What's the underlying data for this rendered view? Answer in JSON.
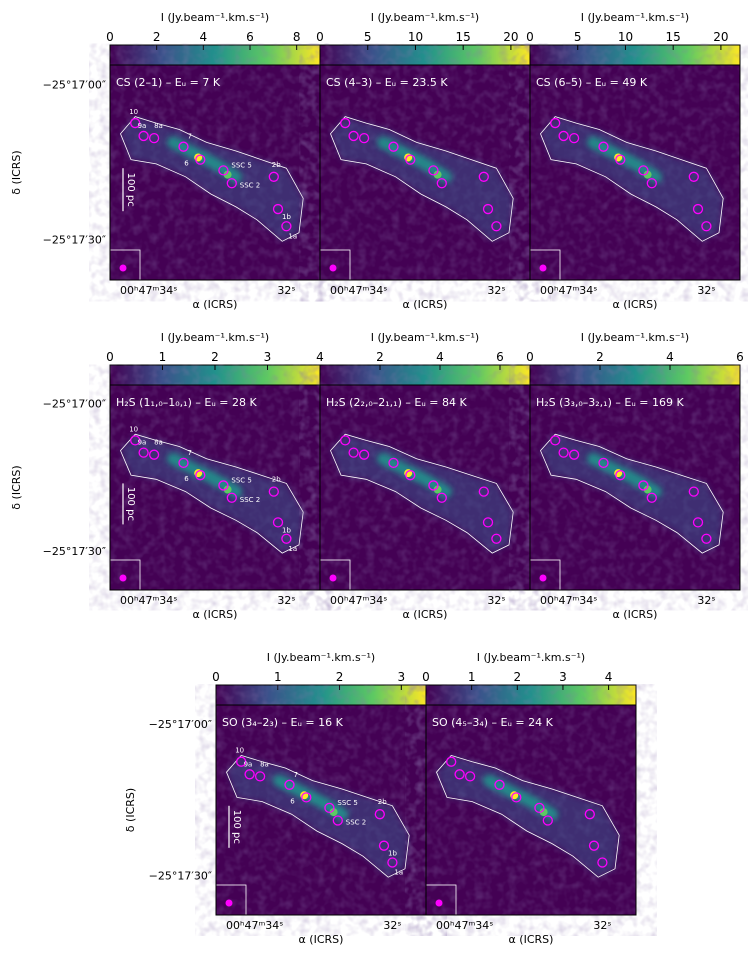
{
  "figure": {
    "colorbar_label": "I (Jy.beam⁻¹.km.s⁻¹)",
    "dec_label": "δ (ICRS)",
    "ra_label": "α (ICRS)",
    "dec_ticks": [
      "−25°17′00″",
      "−25°17′30″"
    ],
    "ra_ticks": [
      "00ʰ47ᵐ34ˢ",
      "32ˢ"
    ],
    "scalebar_label": "100 pc",
    "source_labels": [
      "10",
      "9a",
      "8a",
      "7",
      "6",
      "SSC 5",
      "SSC 2",
      "2b",
      "1b",
      "1a"
    ],
    "colormap": [
      "#440154",
      "#3b528b",
      "#21918c",
      "#5ec962",
      "#fde725"
    ],
    "marker_color": "#ff00ff"
  },
  "chart_data": [
    {
      "type": "heatmap",
      "title": "CS (2–1) – Eᵤ = 7 K",
      "colorbar_ticks": [
        "0",
        "2",
        "4",
        "6",
        "8"
      ],
      "clim": [
        0,
        9
      ],
      "row": 0,
      "col": 0,
      "source_labels_shown": true
    },
    {
      "type": "heatmap",
      "title": "CS (4–3) – Eᵤ = 23.5 K",
      "colorbar_ticks": [
        "0",
        "5",
        "10",
        "15",
        "20"
      ],
      "clim": [
        0,
        22
      ],
      "row": 0,
      "col": 1,
      "source_labels_shown": false
    },
    {
      "type": "heatmap",
      "title": "CS (6–5) – Eᵤ = 49 K",
      "colorbar_ticks": [
        "0",
        "5",
        "10",
        "15",
        "20"
      ],
      "clim": [
        0,
        22
      ],
      "row": 0,
      "col": 2,
      "source_labels_shown": false
    },
    {
      "type": "heatmap",
      "title": "H₂S (1₁,₀–1₀,₁) – Eᵤ = 28 K",
      "colorbar_ticks": [
        "0",
        "1",
        "2",
        "3",
        "4"
      ],
      "clim": [
        0,
        4
      ],
      "row": 1,
      "col": 0,
      "source_labels_shown": true
    },
    {
      "type": "heatmap",
      "title": "H₂S (2₂,₀–2₁,₁) – Eᵤ = 84 K",
      "colorbar_ticks": [
        "2",
        "4",
        "6"
      ],
      "clim": [
        0,
        7
      ],
      "row": 1,
      "col": 1,
      "source_labels_shown": false
    },
    {
      "type": "heatmap",
      "title": "H₂S (3₃,₀–3₂,₁) – Eᵤ = 169 K",
      "colorbar_ticks": [
        "0",
        "2",
        "4",
        "6"
      ],
      "clim": [
        0,
        6
      ],
      "row": 1,
      "col": 2,
      "source_labels_shown": false
    },
    {
      "type": "heatmap",
      "title": "SO (3₄–2₃) – Eᵤ = 16 K",
      "colorbar_ticks": [
        "0",
        "1",
        "2",
        "3"
      ],
      "clim": [
        0,
        3.4
      ],
      "row": 2,
      "col": 0,
      "source_labels_shown": true
    },
    {
      "type": "heatmap",
      "title": "SO (4₅–3₄) – Eᵤ = 24 K",
      "colorbar_ticks": [
        "0",
        "1",
        "2",
        "3",
        "4"
      ],
      "clim": [
        0,
        4.6
      ],
      "row": 2,
      "col": 1,
      "source_labels_shown": false
    }
  ]
}
